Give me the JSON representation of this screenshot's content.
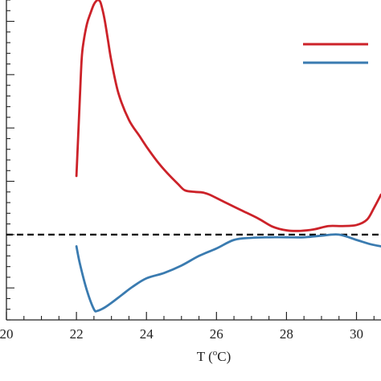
{
  "chart_data": {
    "type": "line",
    "title": "",
    "xlabel_prefix": "T (",
    "xlabel_sup": "o",
    "xlabel_suffix": "C)",
    "xlim": [
      20,
      30.7
    ],
    "x_ticks": [
      20,
      22,
      24,
      26,
      28,
      30
    ],
    "x_tick_labels": [
      "20",
      "22",
      "24",
      "26",
      "28",
      "30"
    ],
    "x_minor_step": 0.5,
    "ylim": [
      -1.6,
      4.4
    ],
    "y_minor_step": 0.2,
    "grid": false,
    "reference_line": {
      "y": 0,
      "style": "dashed",
      "color": "#000000"
    },
    "legend": {
      "placement": "top-right",
      "entries": [
        {
          "color": "#cc2229"
        },
        {
          "color": "#3a7bb0"
        }
      ]
    },
    "series": [
      {
        "color": "#cc2229",
        "x": [
          22.0,
          22.1,
          22.15,
          22.2,
          22.3,
          22.4,
          22.5,
          22.6,
          22.65,
          22.7,
          22.8,
          22.9,
          23.0,
          23.2,
          23.5,
          23.8,
          24.0,
          24.3,
          24.6,
          24.9,
          25.1,
          25.4,
          25.6,
          25.8,
          26.2,
          26.7,
          27.2,
          27.6,
          28.0,
          28.4,
          28.8,
          29.2,
          29.6,
          30.0,
          30.3,
          30.5,
          30.7
        ],
        "y": [
          1.1,
          2.6,
          3.3,
          3.6,
          3.95,
          4.15,
          4.32,
          4.4,
          4.39,
          4.33,
          4.05,
          3.65,
          3.25,
          2.65,
          2.15,
          1.85,
          1.65,
          1.38,
          1.15,
          0.95,
          0.83,
          0.8,
          0.79,
          0.75,
          0.62,
          0.46,
          0.3,
          0.15,
          0.08,
          0.07,
          0.1,
          0.16,
          0.16,
          0.18,
          0.28,
          0.5,
          0.75
        ]
      },
      {
        "color": "#3a7bb0",
        "x": [
          22.0,
          22.1,
          22.3,
          22.5,
          22.6,
          22.8,
          23.0,
          23.3,
          23.6,
          24.0,
          24.5,
          25.0,
          25.5,
          26.0,
          26.5,
          27.0,
          27.5,
          28.0,
          28.5,
          29.0,
          29.5,
          30.0,
          30.4,
          30.7
        ],
        "y": [
          -0.22,
          -0.55,
          -1.05,
          -1.4,
          -1.43,
          -1.37,
          -1.28,
          -1.13,
          -0.98,
          -0.82,
          -0.72,
          -0.58,
          -0.4,
          -0.26,
          -0.1,
          -0.06,
          -0.05,
          -0.05,
          -0.05,
          -0.02,
          0.0,
          -0.1,
          -0.18,
          -0.22
        ]
      }
    ]
  }
}
